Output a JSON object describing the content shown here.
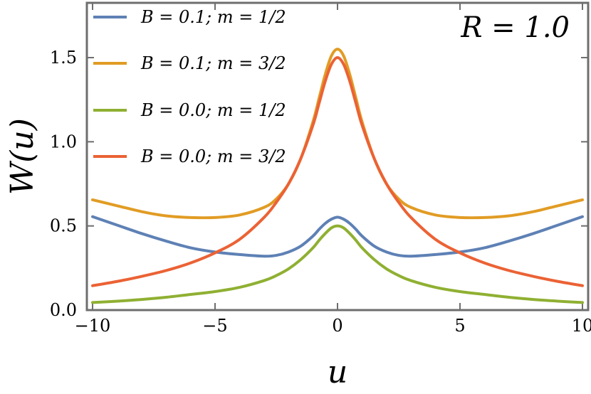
{
  "chart_data": {
    "type": "line",
    "title": "",
    "xlabel": "u",
    "ylabel": "W(u)",
    "annotation": "R = 1.0",
    "xlim": [
      -10,
      10
    ],
    "ylim": [
      0,
      1.8
    ],
    "xticks": [
      -10,
      -5,
      0,
      5,
      10
    ],
    "xtick_labels": [
      "−10",
      "−5",
      "0",
      "5",
      "10"
    ],
    "yticks": [
      0.0,
      0.5,
      1.0,
      1.5
    ],
    "ytick_labels": [
      "0.0",
      "0.5",
      "1.0",
      "1.5"
    ],
    "grid": false,
    "legend_position": "top-left",
    "x": [
      -10,
      -9,
      -8,
      -7,
      -6,
      -5,
      -4,
      -3,
      -2.5,
      -2,
      -1.5,
      -1,
      -0.75,
      -0.5,
      -0.25,
      0,
      0.25,
      0.5,
      0.75,
      1,
      1.5,
      2,
      2.5,
      3,
      4,
      5,
      6,
      7,
      8,
      9,
      10
    ],
    "series": [
      {
        "name": "B = 0.1; m = 1/2",
        "color": "#5E81B5",
        "values": [
          0.555,
          0.505,
          0.455,
          0.41,
          0.37,
          0.345,
          0.33,
          0.32,
          0.325,
          0.345,
          0.38,
          0.44,
          0.48,
          0.515,
          0.54,
          0.552,
          0.54,
          0.515,
          0.48,
          0.44,
          0.38,
          0.345,
          0.325,
          0.32,
          0.33,
          0.345,
          0.37,
          0.41,
          0.455,
          0.505,
          0.555
        ]
      },
      {
        "name": "B = 0.1; m = 3/2",
        "color": "#E19C24",
        "values": [
          0.655,
          0.62,
          0.585,
          0.56,
          0.55,
          0.55,
          0.565,
          0.61,
          0.66,
          0.75,
          0.9,
          1.12,
          1.26,
          1.4,
          1.51,
          1.55,
          1.51,
          1.4,
          1.26,
          1.12,
          0.9,
          0.75,
          0.66,
          0.61,
          0.565,
          0.55,
          0.55,
          0.56,
          0.585,
          0.62,
          0.655
        ]
      },
      {
        "name": "B = 0.0; m = 1/2",
        "color": "#8FB032",
        "values": [
          0.045,
          0.053,
          0.063,
          0.076,
          0.093,
          0.11,
          0.135,
          0.175,
          0.205,
          0.245,
          0.3,
          0.37,
          0.415,
          0.455,
          0.488,
          0.5,
          0.488,
          0.455,
          0.415,
          0.37,
          0.3,
          0.245,
          0.205,
          0.175,
          0.135,
          0.11,
          0.093,
          0.076,
          0.063,
          0.053,
          0.045
        ]
      },
      {
        "name": "B = 0.0; m = 3/2",
        "color": "#EB6235",
        "values": [
          0.145,
          0.17,
          0.2,
          0.235,
          0.28,
          0.34,
          0.42,
          0.55,
          0.64,
          0.75,
          0.9,
          1.1,
          1.23,
          1.36,
          1.46,
          1.5,
          1.46,
          1.36,
          1.23,
          1.1,
          0.9,
          0.75,
          0.64,
          0.55,
          0.42,
          0.34,
          0.28,
          0.235,
          0.2,
          0.17,
          0.145
        ]
      }
    ]
  }
}
